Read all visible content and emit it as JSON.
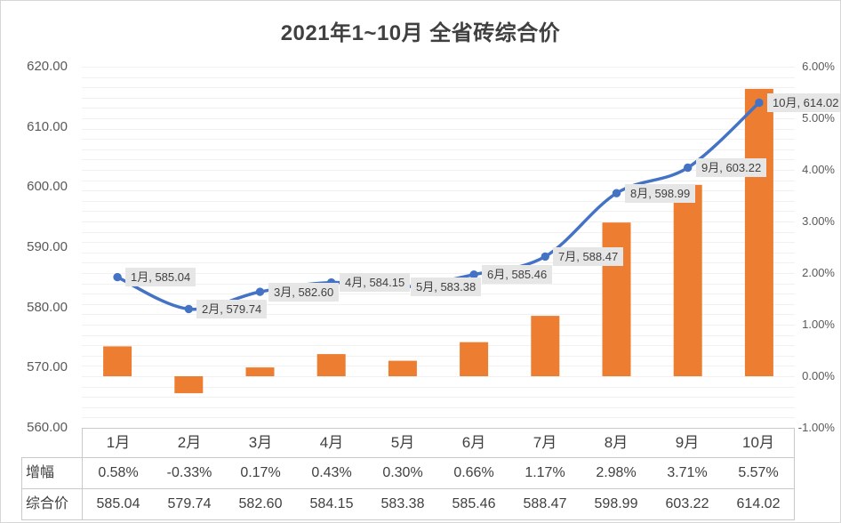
{
  "title": "2021年1~10月 全省砖综合价",
  "chart_data": {
    "type": "combo",
    "title": "2021年1~10月 全省砖综合价",
    "categories": [
      "1月",
      "2月",
      "3月",
      "4月",
      "5月",
      "6月",
      "7月",
      "8月",
      "9月",
      "10月"
    ],
    "series": [
      {
        "name": "增幅",
        "type": "bar",
        "axis": "right",
        "unit": "%",
        "color": "#ED7D31",
        "values": [
          0.58,
          -0.33,
          0.17,
          0.43,
          0.3,
          0.66,
          1.17,
          2.98,
          3.71,
          5.57
        ]
      },
      {
        "name": "综合价",
        "type": "line",
        "axis": "left",
        "color": "#4472C4",
        "values": [
          585.04,
          579.74,
          582.6,
          584.15,
          583.38,
          585.46,
          588.47,
          598.99,
          603.22,
          614.02
        ]
      }
    ],
    "point_labels": [
      "1月, 585.04",
      "2月, 579.74",
      "3月, 582.60",
      "4月, 584.15",
      "5月, 583.38",
      "6月, 585.46",
      "7月, 588.47",
      "8月, 598.99",
      "9月, 603.22",
      "10月, 614.02"
    ],
    "left_axis": {
      "min": 560,
      "max": 620,
      "ticks": [
        "620.00",
        "610.00",
        "600.00",
        "590.00",
        "580.00",
        "570.00",
        "560.00"
      ]
    },
    "right_axis": {
      "min": -1,
      "max": 6,
      "ticks": [
        "6.00%",
        "5.00%",
        "4.00%",
        "3.00%",
        "2.00%",
        "1.00%",
        "0.00%",
        "-1.00%"
      ]
    },
    "grid": "horizontal minor lines every 0.2% (right axis)",
    "legend_position": "none"
  },
  "table": {
    "columns": [
      "1月",
      "2月",
      "3月",
      "4月",
      "5月",
      "6月",
      "7月",
      "8月",
      "9月",
      "10月"
    ],
    "rows": [
      {
        "label": "增幅",
        "values": [
          "0.58%",
          "-0.33%",
          "0.17%",
          "0.43%",
          "0.30%",
          "0.66%",
          "1.17%",
          "2.98%",
          "3.71%",
          "5.57%"
        ]
      },
      {
        "label": "综合价",
        "values": [
          "585.04",
          "579.74",
          "582.60",
          "584.15",
          "583.38",
          "585.46",
          "588.47",
          "598.99",
          "603.22",
          "614.02"
        ]
      }
    ]
  },
  "colors": {
    "bar": "#ED7D31",
    "line": "#4472C4",
    "point_label_bg": "#E6E6E6",
    "point_label_text": "#404040",
    "axis_text": "#595959",
    "gridline": "#F1F1F1",
    "table_border": "#C9C9C9",
    "title_text": "#404040"
  }
}
